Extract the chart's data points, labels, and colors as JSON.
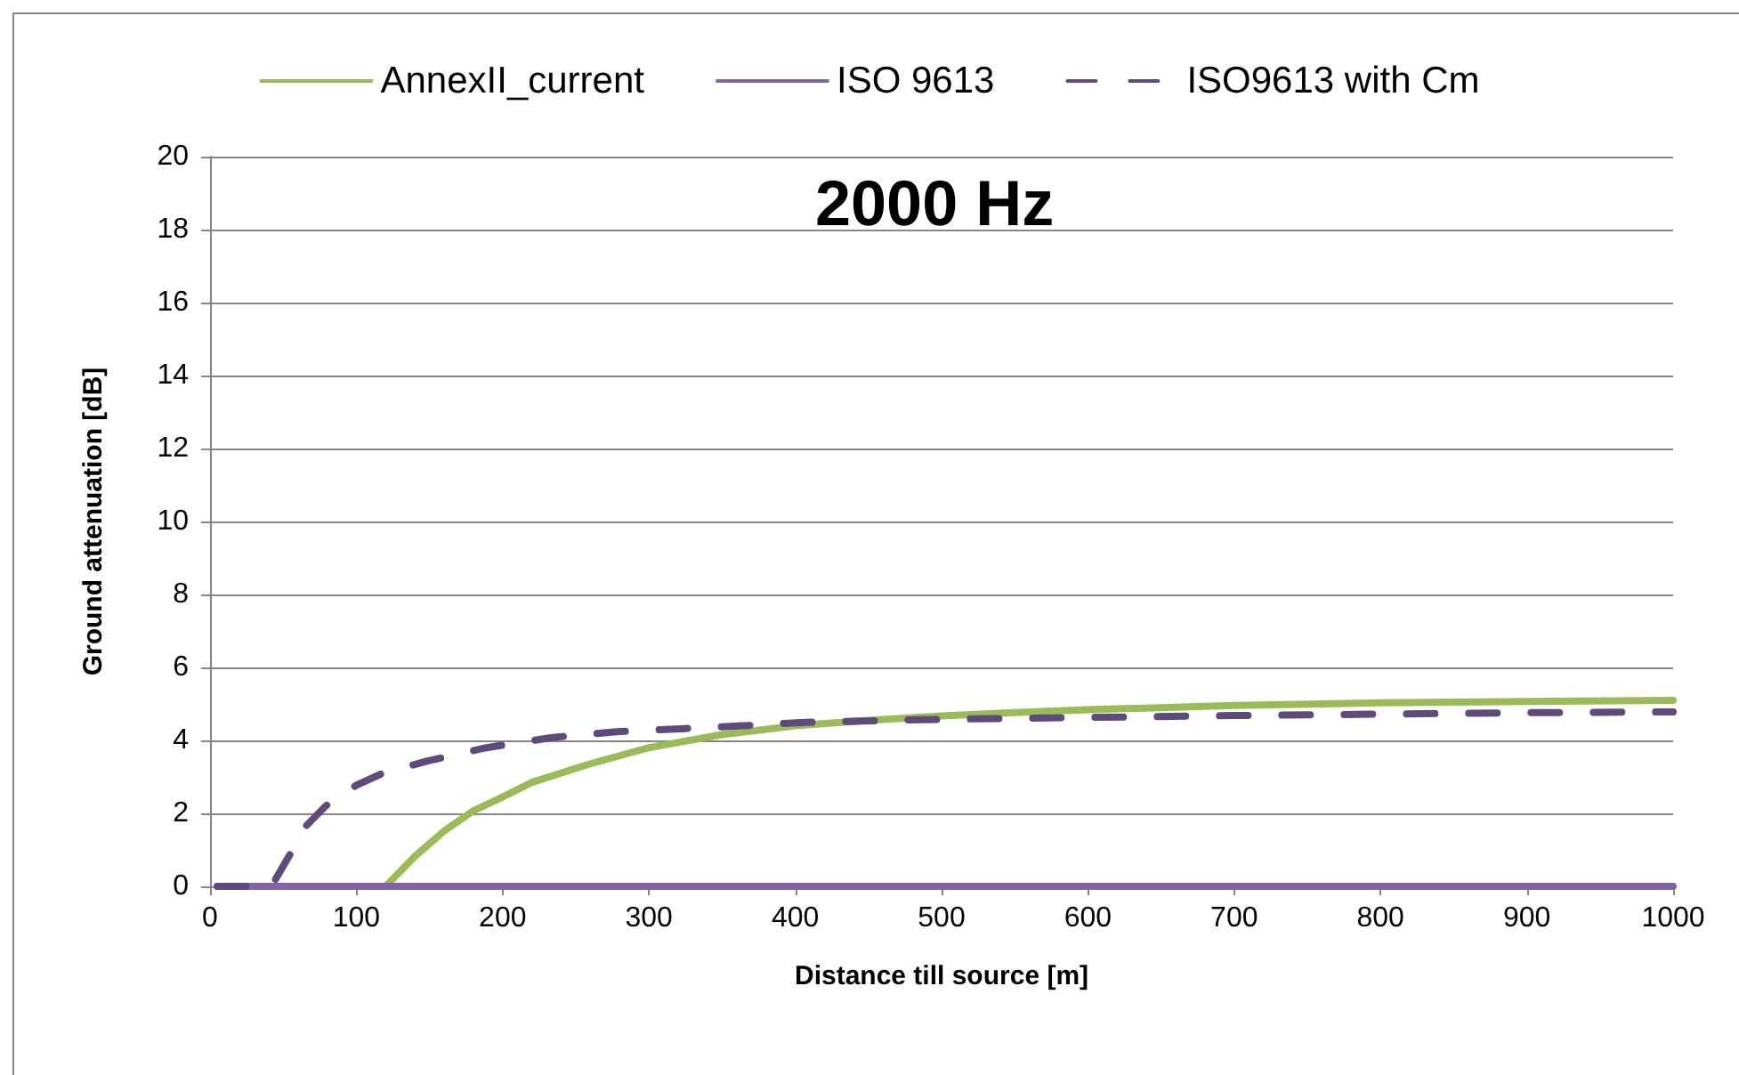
{
  "chart_data": {
    "type": "line",
    "title": "2000 Hz",
    "xlabel": "Distance till source [m]",
    "ylabel": "Ground attenuation [dB]",
    "xlim": [
      0,
      1000
    ],
    "xticks": [
      0,
      100,
      200,
      300,
      400,
      500,
      600,
      700,
      800,
      900,
      1000
    ],
    "ylim": [
      0,
      20
    ],
    "yticks": [
      0,
      2,
      4,
      6,
      8,
      10,
      12,
      14,
      16,
      18,
      20
    ],
    "grid": "y",
    "legend": "top",
    "marker": "none",
    "series": [
      {
        "name": "AnnexII_current",
        "color": "#9bbb59",
        "line_style": "solid",
        "x": [
          120,
          140,
          160,
          180,
          200,
          220,
          260,
          300,
          350,
          400,
          450,
          500,
          550,
          600,
          700,
          800,
          900,
          1000
        ],
        "values": [
          0,
          0.82,
          1.52,
          2.07,
          2.45,
          2.85,
          3.36,
          3.8,
          4.16,
          4.4,
          4.55,
          4.67,
          4.76,
          4.84,
          4.96,
          5.03,
          5.07,
          5.1
        ]
      },
      {
        "name": "ISO 9613",
        "color": "#8064a2",
        "line_style": "solid",
        "x": [
          5,
          1000
        ],
        "values": [
          0,
          0
        ]
      },
      {
        "name": "ISO9613 with Cm",
        "color": "#604a7b",
        "line_style": "dashed",
        "x": [
          5,
          42,
          55,
          65,
          79,
          100,
          118,
          148,
          189,
          234,
          278,
          323,
          364,
          404,
          445,
          486,
          540,
          600,
          700,
          800,
          900,
          1000
        ],
        "values": [
          0,
          0,
          0.9,
          1.63,
          2.2,
          2.77,
          3.1,
          3.43,
          3.8,
          4.08,
          4.24,
          4.32,
          4.4,
          4.49,
          4.53,
          4.57,
          4.6,
          4.63,
          4.68,
          4.72,
          4.76,
          4.78
        ]
      }
    ]
  }
}
